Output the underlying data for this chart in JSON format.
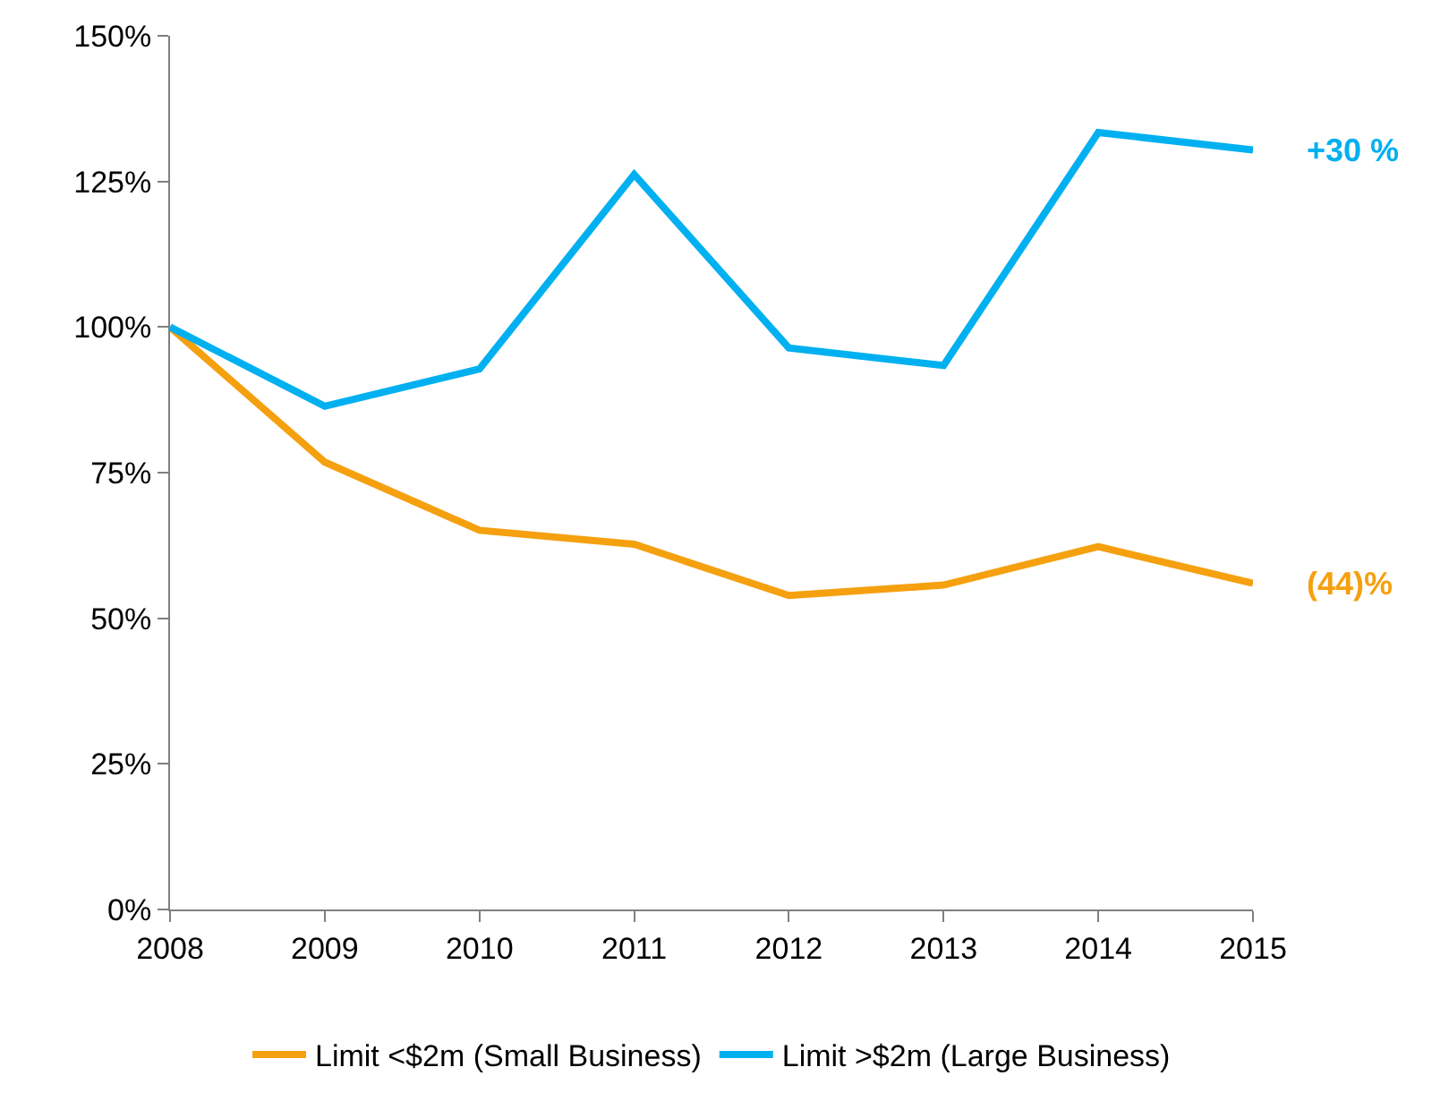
{
  "chart_data": {
    "type": "line",
    "categories": [
      "2008",
      "2009",
      "2010",
      "2011",
      "2012",
      "2013",
      "2014",
      "2015"
    ],
    "series": [
      {
        "name": "Limit <$2m (Small Business)",
        "color": "#f5a00f",
        "values": [
          100,
          76.8,
          65.1,
          62.7,
          53.9,
          55.7,
          62.3,
          56.0
        ]
      },
      {
        "name": "Limit >$2m (Large Business)",
        "color": "#00b0f0",
        "values": [
          100,
          86.4,
          92.8,
          126.2,
          96.4,
          93.4,
          133.4,
          130.4
        ]
      }
    ],
    "ylim": [
      0,
      150
    ],
    "yticks": [
      {
        "value": 0,
        "label": "0%"
      },
      {
        "value": 25,
        "label": "25%"
      },
      {
        "value": 50,
        "label": "50%"
      },
      {
        "value": 75,
        "label": "75%"
      },
      {
        "value": 100,
        "label": "100%"
      },
      {
        "value": 125,
        "label": "125%"
      },
      {
        "value": 150,
        "label": "150%"
      }
    ],
    "annotations": [
      {
        "text": "+30 %",
        "x": "2015",
        "y": 130.4
      },
      {
        "text": "(44)%",
        "x": "2015",
        "y": 56.0
      }
    ],
    "legend": "bottom",
    "marker": "none",
    "line_style": "solid"
  }
}
